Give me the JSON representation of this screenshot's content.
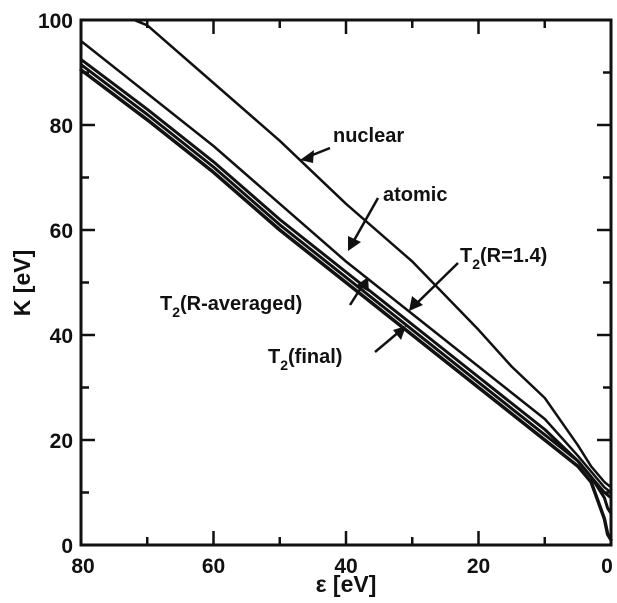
{
  "chart_data": {
    "type": "line",
    "title": "",
    "xlabel": "ε [eV]",
    "ylabel": "K [eV]",
    "xlim": [
      80,
      0
    ],
    "ylim": [
      0,
      100
    ],
    "x_ticks": [
      80,
      60,
      40,
      20,
      0
    ],
    "y_ticks": [
      0,
      20,
      40,
      60,
      80,
      100
    ],
    "x_tick_labels": [
      "80",
      "60",
      "40",
      "20",
      "0"
    ],
    "y_tick_labels": [
      "0",
      "20",
      "40",
      "60",
      "80",
      "100"
    ],
    "x_minor_ticks": [
      70,
      50,
      30,
      10
    ],
    "y_minor_ticks": [
      10,
      30,
      50,
      70,
      90
    ],
    "axis_direction": "x decreases to the right",
    "grid": false,
    "series": [
      {
        "name": "nuclear",
        "x": [
          80,
          72,
          70,
          60,
          50,
          40,
          30,
          20,
          15,
          10,
          5,
          3,
          1,
          0
        ],
        "y": [
          null,
          100,
          99,
          88,
          77,
          65,
          54,
          41,
          34,
          28,
          19,
          15,
          12,
          11
        ]
      },
      {
        "name": "atomic",
        "x": [
          80,
          70,
          60,
          50,
          40,
          30,
          20,
          10,
          5,
          3,
          1,
          0
        ],
        "y": [
          96,
          86,
          76,
          65,
          54,
          44,
          34,
          24,
          17,
          14,
          11,
          10
        ]
      },
      {
        "name": "T2(R=1.4)",
        "x": [
          80,
          70,
          60,
          50,
          40,
          30,
          20,
          10,
          5,
          3,
          1,
          0
        ],
        "y": [
          92.5,
          83,
          73,
          62,
          52,
          42,
          32,
          22,
          16,
          13,
          10,
          9
        ]
      },
      {
        "name": "T2(R-averaged)",
        "x": [
          80,
          70,
          60,
          50,
          40,
          30,
          20,
          10,
          5,
          3,
          1,
          0.5,
          0
        ],
        "y": [
          91.5,
          82,
          72,
          61,
          51,
          41,
          31,
          21,
          16,
          13,
          9,
          7,
          6
        ]
      },
      {
        "name": "T2(final)",
        "x": [
          80,
          70,
          60,
          50,
          40,
          30,
          20,
          10,
          5,
          3,
          1,
          0.5,
          0
        ],
        "y": [
          90.5,
          81,
          71,
          60,
          50,
          40,
          30,
          20,
          15,
          12,
          5,
          2,
          1
        ]
      }
    ],
    "annotations": [
      {
        "name": "nuclear",
        "text": "nuclear"
      },
      {
        "name": "atomic",
        "text": "atomic"
      },
      {
        "name": "t2-r14",
        "base": "T",
        "sub": "2",
        "rest": "(R=1.4)"
      },
      {
        "name": "t2-raveraged",
        "base": "T",
        "sub": "2",
        "rest": "(R-averaged)"
      },
      {
        "name": "t2-final",
        "base": "T",
        "sub": "2",
        "rest": "(final)"
      }
    ]
  }
}
